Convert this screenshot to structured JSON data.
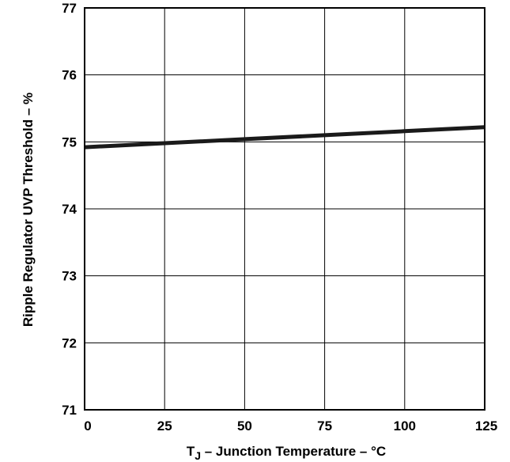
{
  "chart_data": {
    "type": "line",
    "xlabel": {
      "prefix": "T",
      "sub": "J",
      "rest": " – Junction Temperature – °C"
    },
    "ylabel": "Ripple Regulator UVP Threshold – %",
    "xlim": [
      0,
      125
    ],
    "ylim": [
      71,
      77
    ],
    "xticks": [
      0,
      25,
      50,
      75,
      100,
      125
    ],
    "yticks": [
      71,
      72,
      73,
      74,
      75,
      76,
      77
    ],
    "grid": true,
    "series": [
      {
        "x": [
          0,
          25,
          50,
          75,
          100,
          125
        ],
        "y": [
          74.92,
          74.98,
          75.04,
          75.1,
          75.16,
          75.22
        ]
      }
    ]
  }
}
